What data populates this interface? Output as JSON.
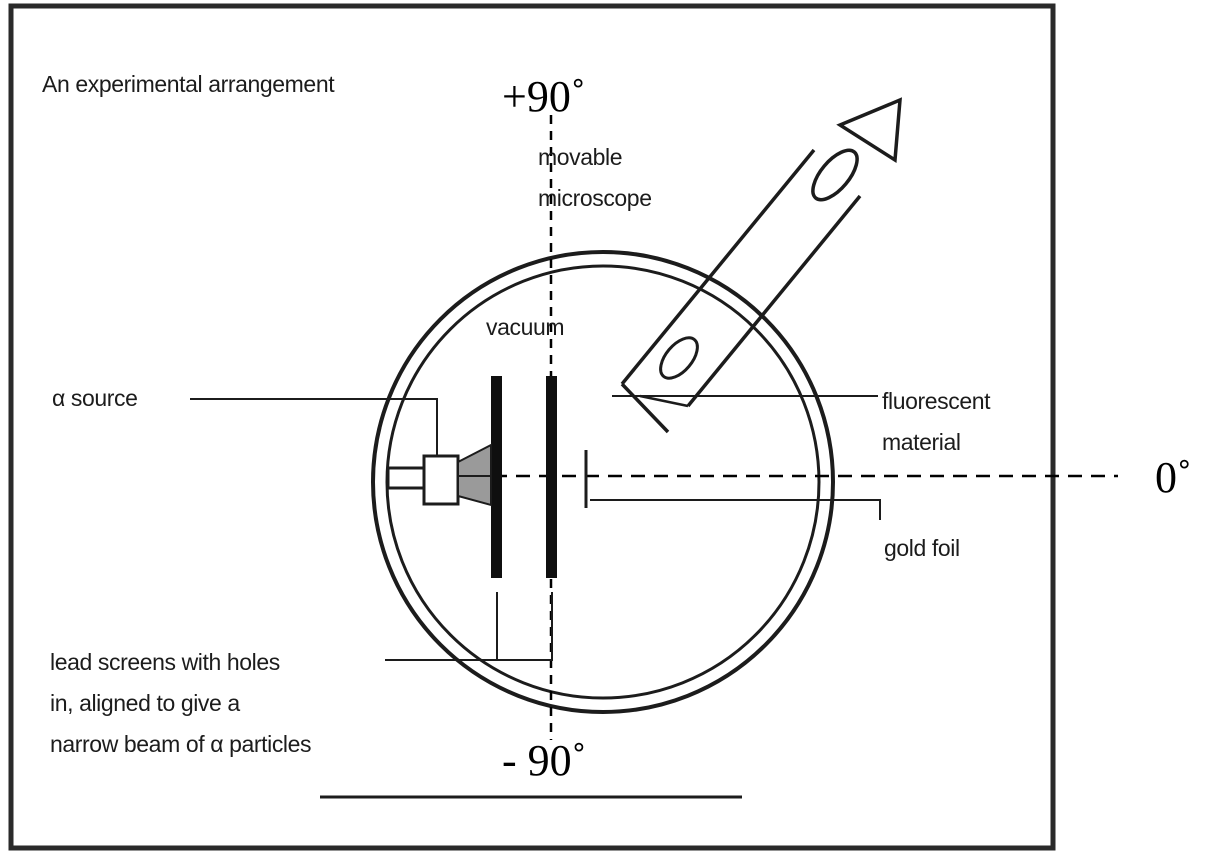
{
  "diagram": {
    "title": "An experimental arrangement",
    "labels": {
      "microscope_line1": "movable",
      "microscope_line2": "microscope",
      "vacuum": "vacuum",
      "alpha_source": "α source",
      "fluorescent_line1": "fluorescent",
      "fluorescent_line2": "material",
      "gold_foil": "gold foil",
      "lead_line1": "lead screens with holes",
      "lead_line2": "in, aligned to give a",
      "lead_line3": "narrow beam of α particles"
    },
    "angles": {
      "top": "+90˚",
      "bottom": "- 90˚",
      "right": "0˚"
    }
  },
  "colors": {
    "ink": "#1c1c1c",
    "frame": "#222222",
    "background": "#ffffff"
  }
}
